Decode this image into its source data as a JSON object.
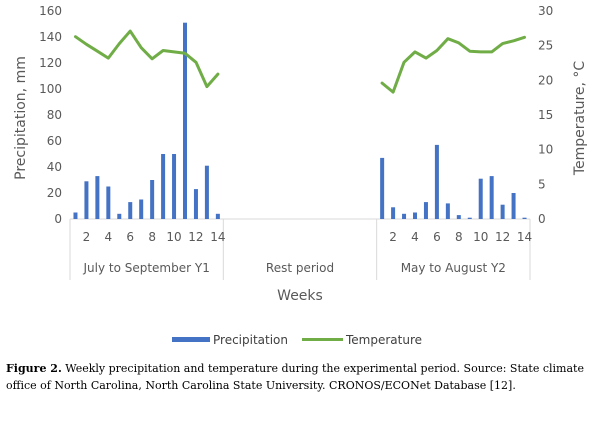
{
  "chart_data": {
    "type": "bar+line",
    "xlabel": "Weeks",
    "ylabel_left": "Precipitation, mm",
    "ylabel_right": "Temperature, °C",
    "ylim_left": [
      0,
      160
    ],
    "yticks_left": [
      0,
      20,
      40,
      60,
      80,
      100,
      120,
      140,
      160
    ],
    "ylim_right": [
      0,
      30
    ],
    "yticks_right": [
      0,
      5,
      10,
      15,
      20,
      25,
      30
    ],
    "grid": false,
    "legend_position": "bottom",
    "groups": [
      {
        "label": "July to September Y1",
        "weeks": [
          1,
          2,
          3,
          4,
          5,
          6,
          7,
          8,
          9,
          10,
          11,
          12,
          13,
          14
        ],
        "tick_labels": [
          "",
          "2",
          "",
          "4",
          "",
          "6",
          "",
          "8",
          "",
          "10",
          "",
          "12",
          "",
          "14"
        ],
        "precipitation": [
          5,
          29,
          33,
          25,
          4,
          13,
          15,
          30,
          50,
          50,
          151,
          23,
          41,
          4
        ],
        "temperature": [
          26.3,
          25.2,
          24.2,
          23.2,
          25.3,
          27.1,
          24.7,
          23.1,
          24.3,
          24.1,
          23.9,
          22.6,
          19.1,
          20.9
        ]
      },
      {
        "label": "Rest period",
        "weeks": [],
        "tick_labels": [],
        "precipitation": [],
        "temperature": []
      },
      {
        "label": "May to August Y2",
        "weeks": [
          1,
          2,
          3,
          4,
          5,
          6,
          7,
          8,
          9,
          10,
          11,
          12,
          13,
          14
        ],
        "tick_labels": [
          "",
          "2",
          "",
          "4",
          "",
          "6",
          "",
          "8",
          "",
          "10",
          "",
          "12",
          "",
          "14"
        ],
        "precipitation": [
          47,
          9,
          4,
          5,
          13,
          57,
          12,
          3,
          1,
          31,
          33,
          11,
          20,
          1
        ],
        "temperature": [
          19.6,
          18.3,
          22.6,
          24.1,
          23.2,
          24.3,
          26.0,
          25.4,
          24.2,
          24.1,
          24.1,
          25.3,
          25.7,
          26.2
        ]
      }
    ],
    "series": [
      {
        "name": "Precipitation",
        "kind": "bar",
        "axis": "left",
        "color": "#4472C4"
      },
      {
        "name": "Temperature",
        "kind": "line",
        "axis": "right",
        "color": "#70AD47"
      }
    ]
  },
  "caption": {
    "label": "Figure 2.",
    "text": " Weekly precipitation and temperature during the experimental period. Source: State climate office of North Carolina, North Carolina State University. CRONOS/ECONet Database [12]."
  }
}
